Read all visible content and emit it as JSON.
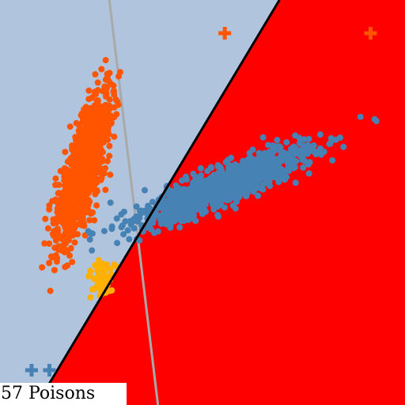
{
  "caption": "57 Poisons",
  "colors": {
    "region_left": "#b0c4de",
    "region_right": "#ff0000",
    "class_a": "#ff5500",
    "class_b": "#4682b4",
    "poison": "#ffb000",
    "boundary": "#000000",
    "reference_line": "#a9a9a9"
  },
  "chart_data": {
    "type": "scatter",
    "title": "",
    "xlabel": "",
    "ylabel": "",
    "grid": false,
    "legend": "none",
    "xlim": [
      0,
      1
    ],
    "ylim": [
      0,
      1
    ],
    "decision_boundary": {
      "from": [
        0.09,
        0.0
      ],
      "to": [
        0.69,
        1.0
      ]
    },
    "reference_line": {
      "from": [
        0.27,
        1.0
      ],
      "to": [
        0.39,
        0.0
      ]
    },
    "clusters": [
      {
        "class": "a",
        "role": "cluster",
        "count": 1100,
        "center": [
          0.205,
          0.58
        ],
        "major_dir": [
          0.28,
          1.0
        ],
        "major_sd": 0.095,
        "minor_sd": 0.02
      },
      {
        "class": "b",
        "role": "cluster",
        "count": 1100,
        "center": [
          0.55,
          0.54
        ],
        "major_dir": [
          1.0,
          0.42
        ],
        "major_sd": 0.115,
        "minor_sd": 0.022
      },
      {
        "class": "poison",
        "role": "poison",
        "count": 57,
        "center": [
          0.25,
          0.31
        ],
        "major_dir": [
          0.4,
          1.0
        ],
        "major_sd": 0.022,
        "minor_sd": 0.014
      }
    ],
    "plus_markers": [
      {
        "class": "a",
        "x": 0.555,
        "y": 0.918
      },
      {
        "class": "a",
        "x": 0.915,
        "y": 0.918
      },
      {
        "class": "b",
        "x": 0.078,
        "y": 0.086
      },
      {
        "class": "b",
        "x": 0.122,
        "y": 0.086
      }
    ]
  }
}
